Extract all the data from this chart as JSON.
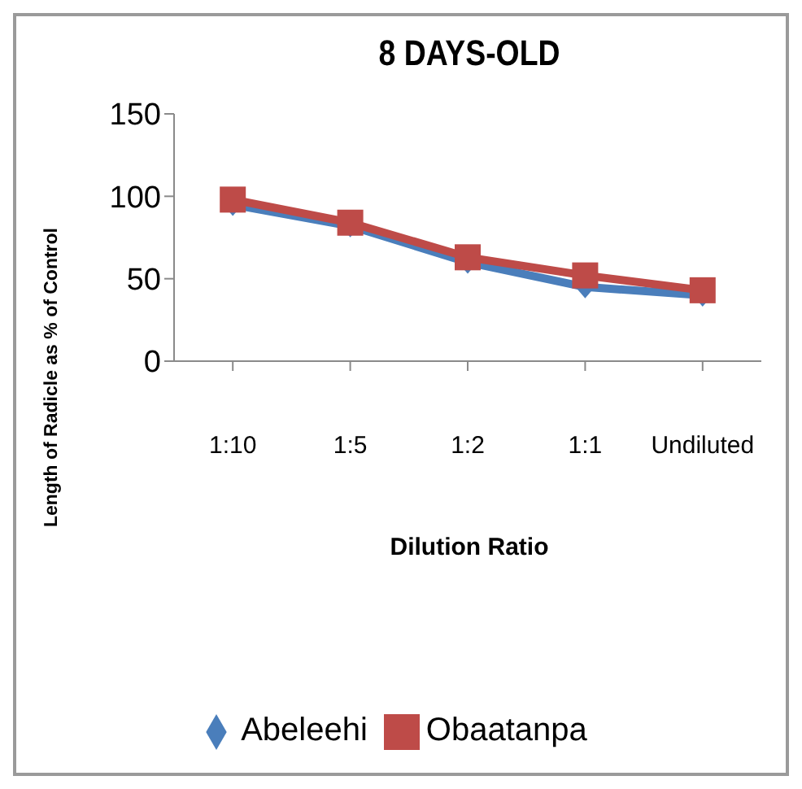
{
  "chart_data": {
    "type": "line",
    "title": "8 DAYS-OLD",
    "xlabel": "Dilution Ratio",
    "ylabel": "Length  of Radicle as % of Control",
    "categories": [
      "1:10",
      "1:5",
      "1:2",
      "1:1",
      "Undiluted"
    ],
    "series": [
      {
        "name": "Abeleehi",
        "color": "#4a7ebb",
        "marker": "diamond",
        "values": [
          95,
          82,
          60,
          45,
          40
        ]
      },
      {
        "name": "Obaatanpa",
        "color": "#be4b48",
        "marker": "square",
        "values": [
          98,
          84,
          63,
          52,
          43
        ]
      }
    ],
    "ylim": [
      0,
      150
    ],
    "yticks": [
      0,
      50,
      100,
      150
    ],
    "grid": false,
    "legend": "bottom"
  }
}
